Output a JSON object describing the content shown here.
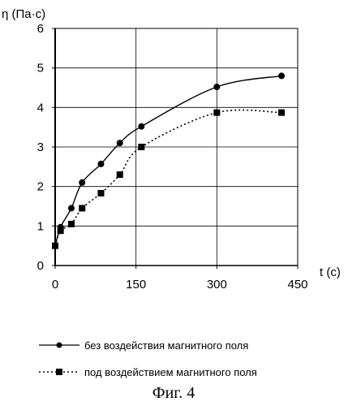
{
  "chart_data": {
    "type": "line",
    "ylabel": "η (Па·с)",
    "xlabel": "t (c)",
    "xlim": [
      0,
      450
    ],
    "ylim": [
      0,
      6
    ],
    "xticks": [
      0,
      150,
      300,
      450
    ],
    "yticks": [
      0,
      1,
      2,
      3,
      4,
      5,
      6
    ],
    "grid": true,
    "legend_position": "bottom",
    "series": [
      {
        "name": "без воздействия магнитного поля",
        "marker": "circle",
        "line": "solid",
        "x": [
          0,
          10,
          30,
          50,
          85,
          120,
          160,
          300,
          420
        ],
        "y": [
          0.5,
          0.97,
          1.45,
          2.1,
          2.57,
          3.1,
          3.52,
          4.52,
          4.8
        ]
      },
      {
        "name": "под воздействием магнитного поля",
        "marker": "square",
        "line": "dotted",
        "x": [
          0,
          10,
          30,
          50,
          85,
          120,
          160,
          300,
          420
        ],
        "y": [
          0.5,
          0.88,
          1.05,
          1.45,
          1.83,
          2.3,
          3.0,
          3.87,
          3.87
        ]
      }
    ]
  },
  "caption": "Фиг. 4"
}
